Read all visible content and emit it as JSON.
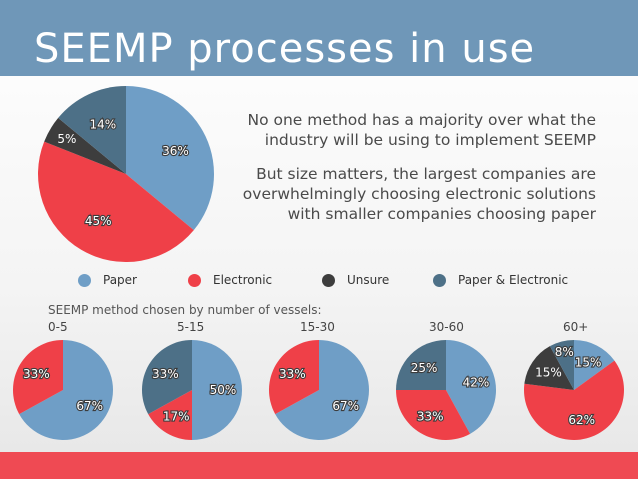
{
  "header": {
    "title": "SEEMP processes in use"
  },
  "intro": {
    "line1": "No one method has a majority over what the industry will be using to implement SEEMP",
    "line2": "But size matters, the largest companies are overwhelmingly choosing electronic solutions with smaller companies choosing paper"
  },
  "legend": [
    {
      "label": "Paper",
      "color": "#6f9ec6"
    },
    {
      "label": "Electronic",
      "color": "#ef4048"
    },
    {
      "label": "Unsure",
      "color": "#3d3d3d"
    },
    {
      "label": "Paper & Electronic",
      "color": "#4d7087"
    }
  ],
  "subtitle": "SEEMP method chosen by number of vessels:",
  "chart_data": [
    {
      "type": "pie",
      "title": "",
      "slices": [
        {
          "category": "Paper",
          "value": 36,
          "label": "36%"
        },
        {
          "category": "Electronic",
          "value": 45,
          "label": "45%"
        },
        {
          "category": "Unsure",
          "value": 5,
          "label": "5%"
        },
        {
          "category": "Paper & Electronic",
          "value": 14,
          "label": "14%"
        }
      ]
    },
    {
      "type": "pie",
      "title": "0-5",
      "slices": [
        {
          "category": "Paper",
          "value": 67,
          "label": "67%"
        },
        {
          "category": "Electronic",
          "value": 33,
          "label": "33%"
        }
      ]
    },
    {
      "type": "pie",
      "title": "5-15",
      "slices": [
        {
          "category": "Paper",
          "value": 50,
          "label": "50%"
        },
        {
          "category": "Electronic",
          "value": 17,
          "label": "17%"
        },
        {
          "category": "Paper & Electronic",
          "value": 33,
          "label": "33%"
        }
      ]
    },
    {
      "type": "pie",
      "title": "15-30",
      "slices": [
        {
          "category": "Paper",
          "value": 67,
          "label": "67%"
        },
        {
          "category": "Electronic",
          "value": 33,
          "label": "33%"
        }
      ]
    },
    {
      "type": "pie",
      "title": "30-60",
      "slices": [
        {
          "category": "Paper",
          "value": 42,
          "label": "42%"
        },
        {
          "category": "Electronic",
          "value": 33,
          "label": "33%"
        },
        {
          "category": "Paper & Electronic",
          "value": 25,
          "label": "25%"
        }
      ]
    },
    {
      "type": "pie",
      "title": "60+",
      "slices": [
        {
          "category": "Paper",
          "value": 15,
          "label": "15%"
        },
        {
          "category": "Electronic",
          "value": 62,
          "label": "62%"
        },
        {
          "category": "Unsure",
          "value": 15,
          "label": "15%"
        },
        {
          "category": "Paper & Electronic",
          "value": 8,
          "label": "8%"
        }
      ]
    }
  ]
}
